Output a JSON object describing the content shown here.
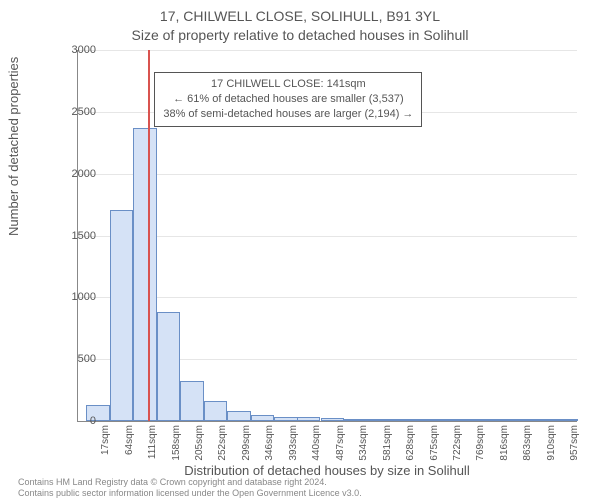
{
  "supertitle": "17, CHILWELL CLOSE, SOLIHULL, B91 3YL",
  "title": "Size of property relative to detached houses in Solihull",
  "ylabel": "Number of detached properties",
  "xlabel": "Distribution of detached houses by size in Solihull",
  "footer_line1": "Contains HM Land Registry data © Crown copyright and database right 2024.",
  "footer_line2": "Contains public sector information licensed under the Open Government Licence v3.0.",
  "chart": {
    "type": "histogram",
    "background_color": "#ffffff",
    "grid_color": "#e6e6e6",
    "axis_color": "#888888",
    "tick_font_size": 11,
    "label_font_size": 13,
    "title_font_size": 14,
    "bar_fill": "#d5e2f6",
    "bar_stroke": "#6a8fc6",
    "marker_color": "#d9534f",
    "marker_x_sqm": 141,
    "x_min": 0,
    "x_max": 1000,
    "x_tick_start": 17,
    "x_tick_step": 47,
    "x_tick_count": 21,
    "x_tick_suffix": "sqm",
    "ylim": [
      0,
      3000
    ],
    "ytick_step": 500,
    "bin_width_sqm": 47,
    "bins": [
      {
        "start": 17,
        "count": 130
      },
      {
        "start": 64,
        "count": 1710
      },
      {
        "start": 111,
        "count": 2370
      },
      {
        "start": 158,
        "count": 880
      },
      {
        "start": 205,
        "count": 320
      },
      {
        "start": 252,
        "count": 160
      },
      {
        "start": 299,
        "count": 80
      },
      {
        "start": 346,
        "count": 50
      },
      {
        "start": 393,
        "count": 35
      },
      {
        "start": 439,
        "count": 30
      },
      {
        "start": 486,
        "count": 25
      },
      {
        "start": 533,
        "count": 20
      },
      {
        "start": 580,
        "count": 12
      },
      {
        "start": 627,
        "count": 8
      },
      {
        "start": 674,
        "count": 6
      },
      {
        "start": 721,
        "count": 5
      },
      {
        "start": 768,
        "count": 4
      },
      {
        "start": 815,
        "count": 3
      },
      {
        "start": 862,
        "count": 2
      },
      {
        "start": 909,
        "count": 2
      },
      {
        "start": 956,
        "count": 1
      }
    ]
  },
  "callout": {
    "line1": "17 CHILWELL CLOSE: 141sqm",
    "line2": "← 61% of detached houses are smaller (3,537)",
    "line3": "38% of semi-detached houses are larger (2,194) →",
    "border_color": "#555555",
    "bg_color": "#ffffff",
    "font_size": 11
  }
}
